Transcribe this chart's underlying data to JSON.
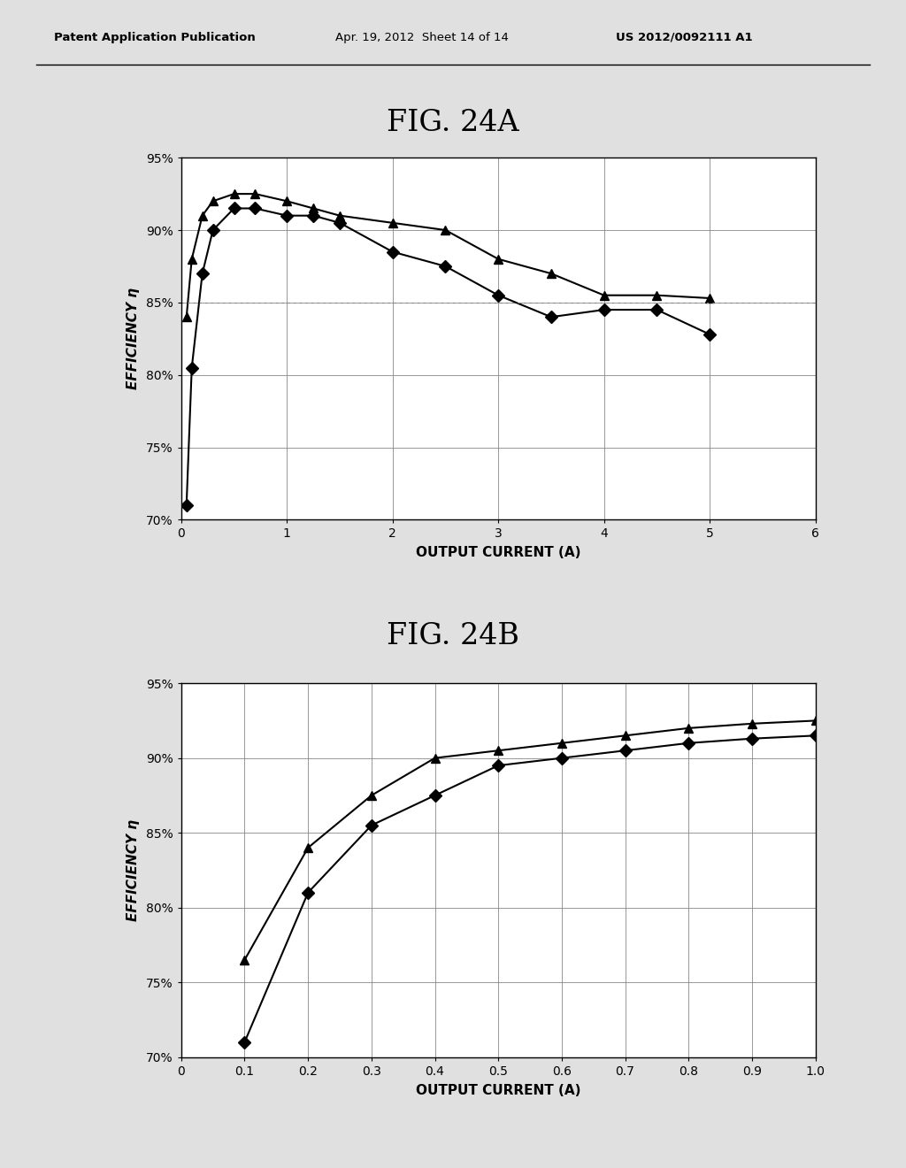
{
  "header_left": "Patent Application Publication",
  "header_mid": "Apr. 19, 2012  Sheet 14 of 14",
  "header_right": "US 2012/0092111 A1",
  "fig_a_title": "FIG. 24A",
  "fig_b_title": "FIG. 24B",
  "bg_color": "#e0e0e0",
  "plot_bg": "#ffffff",
  "line_color": "#000000",
  "grid_color": "#888888",
  "fig_a": {
    "series1_x": [
      0.05,
      0.1,
      0.2,
      0.3,
      0.5,
      0.7,
      1.0,
      1.25,
      1.5,
      2.0,
      2.5,
      3.0,
      3.5,
      4.0,
      4.5,
      5.0
    ],
    "series1_y": [
      84.0,
      88.0,
      91.0,
      92.0,
      92.5,
      92.5,
      92.0,
      91.5,
      91.0,
      90.5,
      90.0,
      88.0,
      87.0,
      85.5,
      85.5,
      85.3
    ],
    "series2_x": [
      0.05,
      0.1,
      0.2,
      0.3,
      0.5,
      0.7,
      1.0,
      1.25,
      1.5,
      2.0,
      2.5,
      3.0,
      3.5,
      4.0,
      4.5,
      5.0
    ],
    "series2_y": [
      71.0,
      80.5,
      87.0,
      90.0,
      91.5,
      91.5,
      91.0,
      91.0,
      90.5,
      88.5,
      87.5,
      85.5,
      84.0,
      84.5,
      84.5,
      82.8
    ],
    "xlabel": "OUTPUT CURRENT (A)",
    "ylabel": "EFFICIENCY η",
    "xlim": [
      0,
      6
    ],
    "ylim": [
      70,
      95
    ],
    "xticks": [
      0,
      1,
      2,
      3,
      4,
      5,
      6
    ],
    "yticks": [
      70,
      75,
      80,
      85,
      90,
      95
    ],
    "ytick_labels": [
      "70%",
      "75%",
      "80%",
      "85%",
      "90%",
      "95%"
    ],
    "dashed_line_y": 85.0
  },
  "fig_b": {
    "series1_x": [
      0.1,
      0.2,
      0.3,
      0.4,
      0.5,
      0.6,
      0.7,
      0.8,
      0.9,
      1.0
    ],
    "series1_y": [
      76.5,
      84.0,
      87.5,
      90.0,
      90.5,
      91.0,
      91.5,
      92.0,
      92.3,
      92.5
    ],
    "series2_x": [
      0.1,
      0.2,
      0.3,
      0.4,
      0.5,
      0.6,
      0.7,
      0.8,
      0.9,
      1.0
    ],
    "series2_y": [
      71.0,
      81.0,
      85.5,
      87.5,
      89.5,
      90.0,
      90.5,
      91.0,
      91.3,
      91.5
    ],
    "xlabel": "OUTPUT CURRENT (A)",
    "ylabel": "EFFICIENCY η",
    "xlim": [
      0,
      1.0
    ],
    "ylim": [
      70,
      95
    ],
    "xticks": [
      0,
      0.1,
      0.2,
      0.3,
      0.4,
      0.5,
      0.6,
      0.7,
      0.8,
      0.9,
      1.0
    ],
    "yticks": [
      70,
      75,
      80,
      85,
      90,
      95
    ],
    "ytick_labels": [
      "70%",
      "75%",
      "80%",
      "85%",
      "90%",
      "95%"
    ]
  },
  "marker1": "^",
  "marker2": "D",
  "markersize": 7
}
